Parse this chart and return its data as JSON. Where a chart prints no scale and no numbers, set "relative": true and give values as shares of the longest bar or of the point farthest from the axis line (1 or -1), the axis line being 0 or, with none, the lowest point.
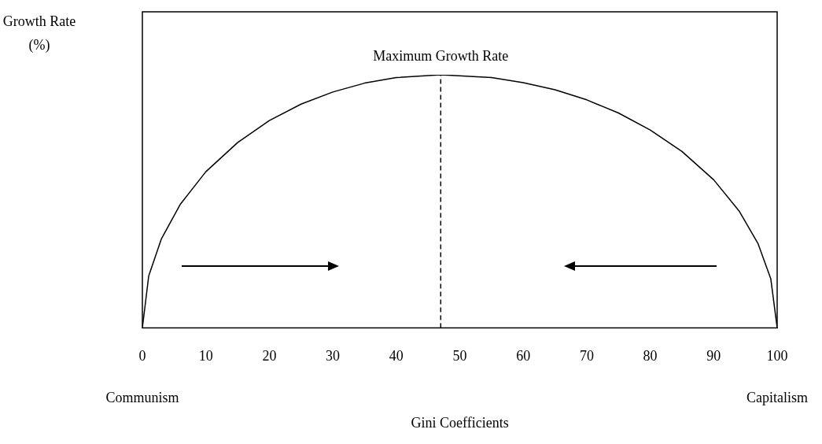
{
  "chart_data": {
    "type": "line",
    "relative": true,
    "xlabel": "Gini Coefficients",
    "x": [
      0,
      1,
      3,
      6,
      10,
      15,
      20,
      25,
      30,
      35,
      40,
      47,
      55,
      60,
      65,
      70,
      75,
      80,
      85,
      90,
      94,
      97,
      99,
      100
    ],
    "series": [
      {
        "color": "#000000",
        "values": [
          0,
          0.205,
          0.352,
          0.489,
          0.617,
          0.732,
          0.819,
          0.884,
          0.932,
          0.967,
          0.989,
          1,
          0.989,
          0.969,
          0.941,
          0.901,
          0.849,
          0.782,
          0.697,
          0.585,
          0.462,
          0.332,
          0.193,
          0
        ]
      }
    ],
    "xlim": [
      0,
      100
    ],
    "xticks": [
      0,
      10,
      20,
      30,
      40,
      50,
      60,
      70,
      80,
      90,
      100
    ],
    "ref_lines": [
      {
        "axis": "x",
        "value": 47,
        "label": "Maximum Growth Rate",
        "line_style": "dashed",
        "color": "#000000"
      }
    ],
    "annotations": [
      "Growth Rate (%)",
      "Communism",
      "Capitalism"
    ],
    "grid": false,
    "legend": false,
    "marker": "none",
    "line_style": "solid"
  }
}
